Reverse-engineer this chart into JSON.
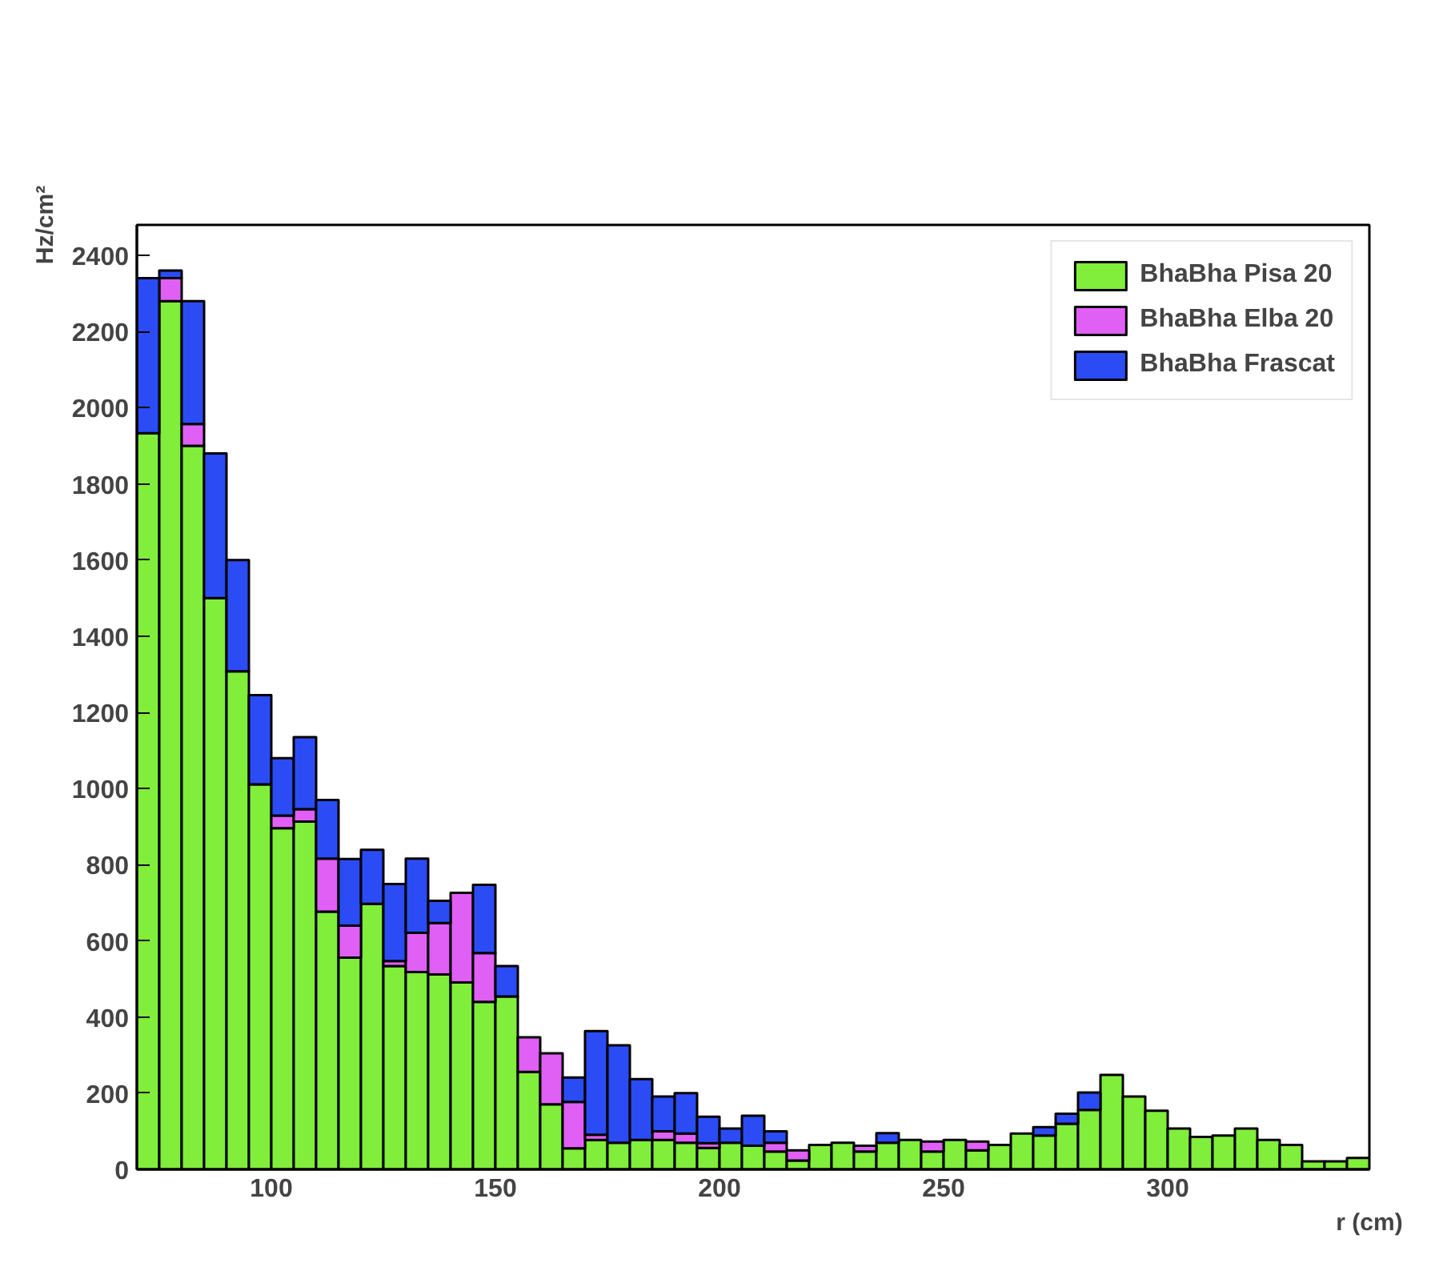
{
  "chart_data": {
    "type": "bar",
    "xlabel": "r (cm)",
    "ylabel": "Hz/cm²",
    "stacked": true,
    "x": [
      72.5,
      77.5,
      82.5,
      87.5,
      92.5,
      97.5,
      102.5,
      107.5,
      112.5,
      117.5,
      122.5,
      127.5,
      132.5,
      137.5,
      142.5,
      147.5,
      152.5,
      157.5,
      162.5,
      167.5,
      172.5,
      177.5,
      182.5,
      187.5,
      192.5,
      197.5,
      202.5,
      207.5,
      212.5,
      217.5,
      222.5,
      227.5,
      232.5,
      237.5,
      242.5,
      247.5,
      252.5,
      257.5,
      262.5,
      267.5,
      272.5,
      277.5,
      282.5,
      287.5,
      292.5,
      297.5,
      302.5,
      307.5,
      312.5,
      317.5,
      322.5,
      327.5,
      332.5,
      337.5,
      342.5
    ],
    "series": [
      {
        "name": "BhaBha Pisa 20",
        "color": "#80ee3a",
        "values": [
          1933,
          2280,
          1900,
          1500,
          1308,
          1011,
          896,
          913,
          677,
          556,
          697,
          534,
          518,
          512,
          491,
          440,
          454,
          256,
          171,
          55,
          77,
          70,
          77,
          77,
          70,
          56,
          70,
          62,
          47,
          23,
          64,
          70,
          47,
          70,
          77,
          47,
          77,
          50,
          64,
          94,
          89,
          120,
          156,
          248,
          191,
          154,
          107,
          85,
          89,
          107,
          77,
          64,
          21,
          21,
          30
        ]
      },
      {
        "name": "BhaBha Elba 20",
        "color": "#e060f5",
        "values": [
          null,
          60,
          57,
          null,
          null,
          null,
          33,
          33,
          139,
          84,
          null,
          13,
          103,
          135,
          235,
          128,
          null,
          91,
          134,
          122,
          14,
          null,
          null,
          23,
          24,
          13,
          null,
          null,
          23,
          27,
          null,
          null,
          15,
          null,
          null,
          26,
          null,
          23,
          null,
          null,
          null,
          null,
          null,
          null,
          null,
          null,
          null,
          null,
          null,
          null,
          null,
          null,
          null,
          null,
          null
        ]
      },
      {
        "name": "BhaBha Frascat",
        "color": "#2b4cf5",
        "values": [
          407,
          20,
          323,
          380,
          292,
          234,
          151,
          189,
          154,
          175,
          142,
          202,
          195,
          58,
          null,
          179,
          80,
          null,
          null,
          64,
          272,
          256,
          160,
          91,
          106,
          69,
          37,
          79,
          30,
          null,
          null,
          null,
          null,
          25,
          null,
          null,
          null,
          null,
          null,
          null,
          22,
          26,
          46,
          null,
          null,
          null,
          null,
          null,
          null,
          null,
          null,
          null,
          null,
          null,
          null
        ]
      }
    ],
    "xlim": [
      70,
      345
    ],
    "xticks": [
      100,
      150,
      200,
      250,
      300
    ],
    "ylim": [
      0,
      2480
    ],
    "yticks": [
      0,
      200,
      400,
      600,
      800,
      1000,
      1200,
      1400,
      1600,
      1800,
      2000,
      2200,
      2400
    ],
    "grid": false,
    "legend": "top right"
  }
}
